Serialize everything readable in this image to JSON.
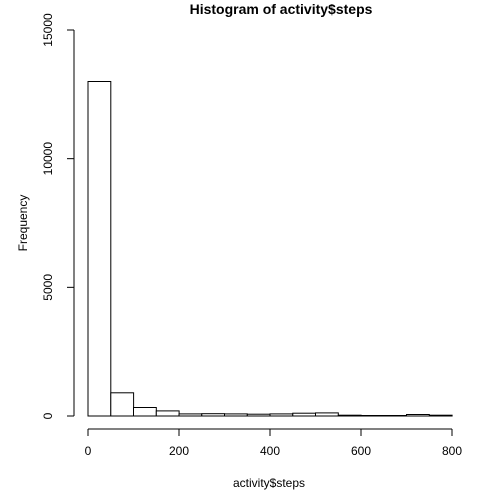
{
  "chart_data": {
    "type": "bar",
    "title": "Histogram of activity$steps",
    "xlabel": "activity$steps",
    "ylabel": "Frequency",
    "bin_width": 50,
    "bin_starts": [
      0,
      50,
      100,
      150,
      200,
      250,
      300,
      350,
      400,
      450,
      500,
      550,
      600,
      650,
      700,
      750
    ],
    "values": [
      13000,
      900,
      330,
      200,
      80,
      90,
      80,
      70,
      80,
      110,
      120,
      30,
      20,
      20,
      60,
      30
    ],
    "xlim": [
      0,
      800
    ],
    "ylim": [
      0,
      15000
    ],
    "x_ticks": [
      0,
      200,
      400,
      600,
      800
    ],
    "y_ticks": [
      0,
      5000,
      10000,
      15000
    ],
    "grid": false
  }
}
